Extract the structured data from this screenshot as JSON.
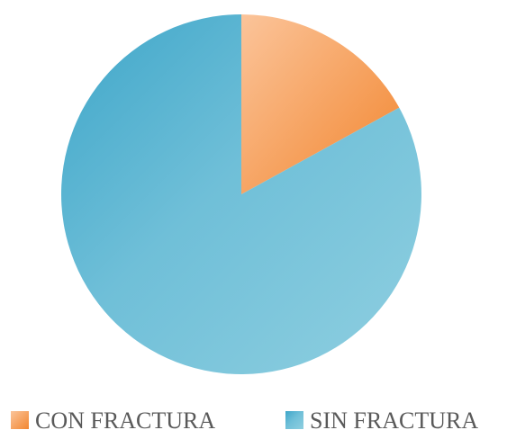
{
  "chart_data": {
    "type": "pie",
    "categories": [
      "CON FRACTURA",
      "SIN FRACTURA"
    ],
    "values": [
      17,
      83
    ],
    "colors": [
      "#f7a15e",
      "#58b4d2"
    ],
    "start_angle_deg": 0,
    "direction": "clockwise",
    "legend_position": "bottom",
    "title": ""
  }
}
